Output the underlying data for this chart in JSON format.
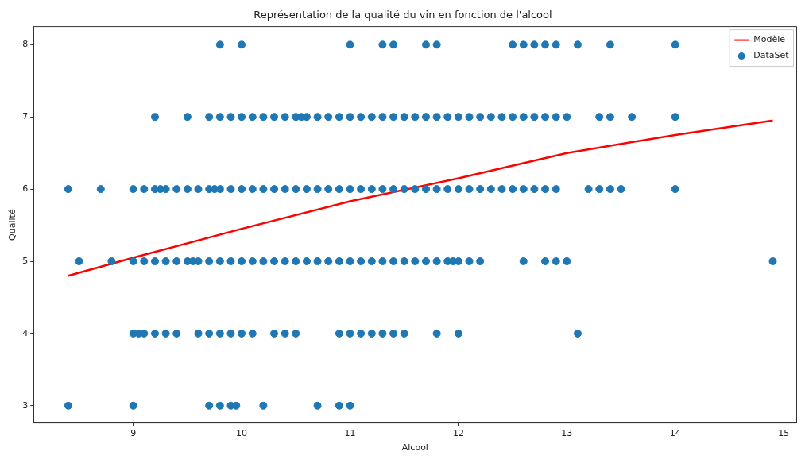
{
  "chart_data": {
    "type": "scatter",
    "title": "Représentation de la qualité du vin en fonction de l'alcool",
    "xlabel": "Alcool",
    "ylabel": "Qualité",
    "xlim": [
      8.08,
      15.12
    ],
    "ylim": [
      2.76,
      8.25
    ],
    "xticks": [
      9,
      10,
      11,
      12,
      13,
      14,
      15
    ],
    "yticks": [
      3,
      4,
      5,
      6,
      7,
      8
    ],
    "grid": false,
    "legend": "top right",
    "series": [
      {
        "name": "Modèle",
        "type": "line",
        "color": "#ff0000",
        "line_style": "solid",
        "marker": "none",
        "x": [
          8.4,
          9,
          10,
          11,
          12,
          13,
          14,
          14.9
        ],
        "values": [
          4.8,
          5.05,
          5.45,
          5.83,
          6.15,
          6.5,
          6.75,
          6.95
        ]
      },
      {
        "name": "DataSet",
        "color": "#1f77b4",
        "marker": "circle",
        "x": [
          9.8,
          10.0,
          11.0,
          11.3,
          11.4,
          11.7,
          11.8,
          12.5,
          12.6,
          12.7,
          12.8,
          12.9,
          13.1,
          13.4,
          14.0,
          9.2,
          9.5,
          9.7,
          9.8,
          9.9,
          10.0,
          10.1,
          10.2,
          10.3,
          10.4,
          10.5,
          10.55,
          10.6,
          10.7,
          10.8,
          10.9,
          11.0,
          11.1,
          11.2,
          11.3,
          11.4,
          11.5,
          11.6,
          11.7,
          11.8,
          11.9,
          12.0,
          12.1,
          12.2,
          12.3,
          12.4,
          12.5,
          12.6,
          12.7,
          12.8,
          12.9,
          13.0,
          13.3,
          13.4,
          13.6,
          14.0,
          8.4,
          8.7,
          9.0,
          9.1,
          9.2,
          9.25,
          9.3,
          9.4,
          9.5,
          9.6,
          9.7,
          9.75,
          9.8,
          9.9,
          10.0,
          10.1,
          10.2,
          10.3,
          10.4,
          10.5,
          10.6,
          10.7,
          10.8,
          10.9,
          11.0,
          11.1,
          11.2,
          11.3,
          11.4,
          11.5,
          11.6,
          11.7,
          11.8,
          11.9,
          12.0,
          12.1,
          12.2,
          12.3,
          12.4,
          12.5,
          12.6,
          12.7,
          12.8,
          12.9,
          13.2,
          13.3,
          13.4,
          13.5,
          14.0,
          8.5,
          8.8,
          9.0,
          9.1,
          9.2,
          9.3,
          9.4,
          9.5,
          9.55,
          9.6,
          9.7,
          9.8,
          9.9,
          10.0,
          10.1,
          10.2,
          10.3,
          10.4,
          10.5,
          10.6,
          10.7,
          10.8,
          10.9,
          11.0,
          11.1,
          11.2,
          11.3,
          11.4,
          11.5,
          11.6,
          11.7,
          11.8,
          11.9,
          11.95,
          12.0,
          12.1,
          12.2,
          12.6,
          12.8,
          12.9,
          13.0,
          14.9,
          9.0,
          9.05,
          9.1,
          9.2,
          9.3,
          9.4,
          9.6,
          9.7,
          9.8,
          9.9,
          10.0,
          10.1,
          10.3,
          10.4,
          10.5,
          10.9,
          11.0,
          11.1,
          11.2,
          11.3,
          11.4,
          11.5,
          11.8,
          12.0,
          13.1,
          8.4,
          9.0,
          9.7,
          9.8,
          9.9,
          9.95,
          10.2,
          10.7,
          10.9,
          11.0
        ],
        "values": [
          8,
          8,
          8,
          8,
          8,
          8,
          8,
          8,
          8,
          8,
          8,
          8,
          8,
          8,
          8,
          7,
          7,
          7,
          7,
          7,
          7,
          7,
          7,
          7,
          7,
          7,
          7,
          7,
          7,
          7,
          7,
          7,
          7,
          7,
          7,
          7,
          7,
          7,
          7,
          7,
          7,
          7,
          7,
          7,
          7,
          7,
          7,
          7,
          7,
          7,
          7,
          7,
          7,
          7,
          7,
          7,
          6,
          6,
          6,
          6,
          6,
          6,
          6,
          6,
          6,
          6,
          6,
          6,
          6,
          6,
          6,
          6,
          6,
          6,
          6,
          6,
          6,
          6,
          6,
          6,
          6,
          6,
          6,
          6,
          6,
          6,
          6,
          6,
          6,
          6,
          6,
          6,
          6,
          6,
          6,
          6,
          6,
          6,
          6,
          6,
          6,
          6,
          6,
          6,
          6,
          5,
          5,
          5,
          5,
          5,
          5,
          5,
          5,
          5,
          5,
          5,
          5,
          5,
          5,
          5,
          5,
          5,
          5,
          5,
          5,
          5,
          5,
          5,
          5,
          5,
          5,
          5,
          5,
          5,
          5,
          5,
          5,
          5,
          5,
          5,
          5,
          5,
          5,
          5,
          5,
          5,
          5,
          4,
          4,
          4,
          4,
          4,
          4,
          4,
          4,
          4,
          4,
          4,
          4,
          4,
          4,
          4,
          4,
          4,
          4,
          4,
          4,
          4,
          4,
          4,
          4,
          4,
          3,
          3,
          3,
          3,
          3,
          3,
          3,
          3,
          3,
          3
        ]
      }
    ]
  }
}
